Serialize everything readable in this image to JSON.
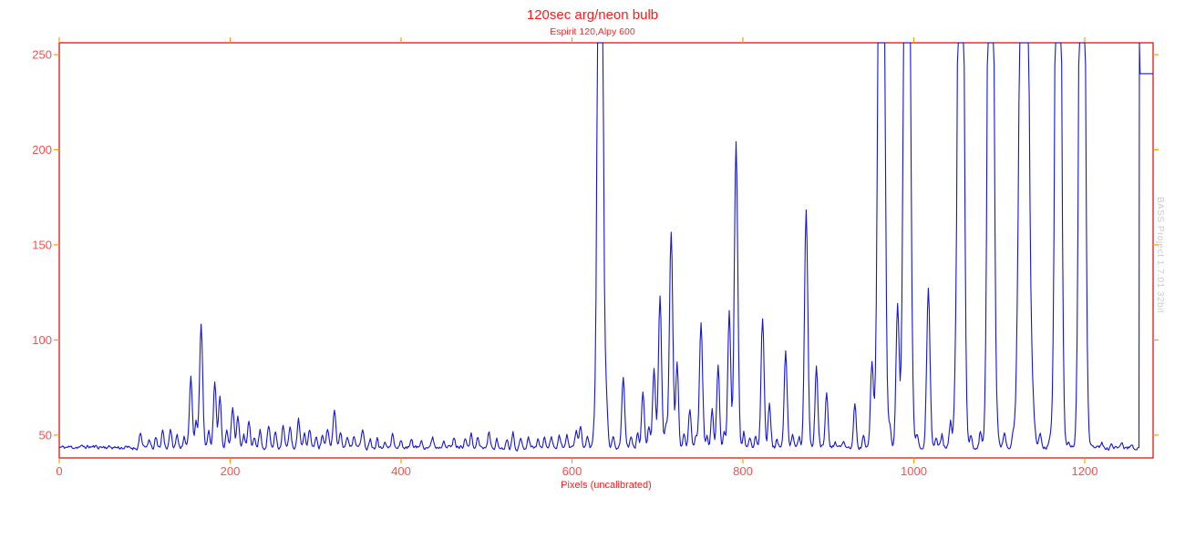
{
  "window": {
    "background": "#ffffff"
  },
  "chart_data": {
    "type": "line",
    "title": "120sec arg/neon bulb",
    "subtitle": "Espirit 120,Alpy 600",
    "xlabel": "Pixels (uncalibrated)",
    "watermark": "BASS Project 1.7.01 32bit",
    "x_ticks": [
      0,
      200,
      400,
      600,
      800,
      1000,
      1200
    ],
    "y_ticks": [
      50,
      100,
      150,
      200,
      250
    ],
    "xlim": [
      0,
      1280
    ],
    "ylim": [
      38,
      256.2
    ],
    "grid": false,
    "legend": "none",
    "baseline": 43.5,
    "noise_amplitude": 1.1,
    "clip_value": 256.2,
    "line_color": "#1414dc",
    "axis_color": "#e00000",
    "tick_color": "#ff9c00",
    "label_color": "#ff4d4d",
    "title_color": "#ff1a1a",
    "subtitle_color": "#ff2a2a",
    "xlabel_color": "#ff1a1a",
    "watermark_color": "#cbcbcb",
    "peaks": [
      [
        95,
        52,
        1.4
      ],
      [
        105,
        48,
        1.3
      ],
      [
        113,
        49,
        1.2
      ],
      [
        121,
        53,
        1.4
      ],
      [
        130,
        53,
        1.4
      ],
      [
        138,
        50,
        1.3
      ],
      [
        146,
        49,
        1.2
      ],
      [
        154,
        81,
        1.6
      ],
      [
        160,
        58,
        1.4
      ],
      [
        166,
        108,
        1.8
      ],
      [
        175,
        52,
        1.4
      ],
      [
        182,
        78,
        1.6
      ],
      [
        188,
        71,
        1.5
      ],
      [
        196,
        52,
        1.3
      ],
      [
        203,
        65,
        1.6
      ],
      [
        209,
        59,
        1.5
      ],
      [
        216,
        50,
        1.3
      ],
      [
        222,
        57,
        1.5
      ],
      [
        228,
        50,
        1.3
      ],
      [
        235,
        53,
        1.4
      ],
      [
        245,
        55,
        1.5
      ],
      [
        253,
        52,
        1.4
      ],
      [
        262,
        56,
        1.5
      ],
      [
        270,
        54,
        1.4
      ],
      [
        280,
        58,
        1.5
      ],
      [
        287,
        50,
        1.3
      ],
      [
        293,
        53,
        1.4
      ],
      [
        301,
        49,
        1.2
      ],
      [
        308,
        50,
        1.3
      ],
      [
        314,
        52,
        1.4
      ],
      [
        322,
        63,
        1.6
      ],
      [
        329,
        52,
        1.3
      ],
      [
        337,
        50,
        1.3
      ],
      [
        345,
        50,
        1.3
      ],
      [
        355,
        54,
        1.5
      ],
      [
        364,
        49,
        1.2
      ],
      [
        372,
        50,
        1.2
      ],
      [
        381,
        48,
        1.2
      ],
      [
        390,
        51,
        1.3
      ],
      [
        400,
        48,
        1.2
      ],
      [
        412,
        49,
        1.2
      ],
      [
        424,
        48,
        1.2
      ],
      [
        437,
        49,
        1.2
      ],
      [
        450,
        48,
        1.2
      ],
      [
        462,
        48,
        1.2
      ],
      [
        475,
        49,
        1.2
      ],
      [
        482,
        50,
        1.2
      ],
      [
        490,
        49,
        1.2
      ],
      [
        503,
        52,
        1.3
      ],
      [
        512,
        48,
        1.2
      ],
      [
        524,
        49,
        1.2
      ],
      [
        531,
        52,
        1.3
      ],
      [
        540,
        48,
        1.2
      ],
      [
        549,
        50,
        1.3
      ],
      [
        560,
        48,
        1.2
      ],
      [
        568,
        49,
        1.2
      ],
      [
        576,
        49,
        1.2
      ],
      [
        585,
        50,
        1.3
      ],
      [
        594,
        50,
        1.3
      ],
      [
        605,
        52,
        1.4
      ],
      [
        610,
        54,
        1.4
      ],
      [
        618,
        49,
        1.2
      ],
      [
        626,
        50,
        1.3
      ],
      [
        633,
        600,
        2.5
      ],
      [
        640,
        70,
        1.6
      ],
      [
        648,
        50,
        1.3
      ],
      [
        660,
        81,
        1.7
      ],
      [
        669,
        49,
        1.3
      ],
      [
        677,
        52,
        1.3
      ],
      [
        683,
        73,
        1.6
      ],
      [
        690,
        55,
        1.4
      ],
      [
        696,
        85,
        1.6
      ],
      [
        703,
        123,
        1.8
      ],
      [
        710,
        56,
        1.4
      ],
      [
        716,
        157,
        1.9
      ],
      [
        723,
        87,
        1.6
      ],
      [
        731,
        50,
        1.3
      ],
      [
        738,
        63,
        1.5
      ],
      [
        745,
        50,
        1.3
      ],
      [
        751,
        108,
        1.8
      ],
      [
        758,
        49,
        1.2
      ],
      [
        764,
        63,
        1.5
      ],
      [
        771,
        86,
        1.6
      ],
      [
        778,
        52,
        1.3
      ],
      [
        784,
        116,
        1.7
      ],
      [
        792,
        205,
        2.0
      ],
      [
        801,
        52,
        1.3
      ],
      [
        808,
        48,
        1.2
      ],
      [
        815,
        50,
        1.3
      ],
      [
        823,
        112,
        1.8
      ],
      [
        831,
        67,
        1.5
      ],
      [
        840,
        48,
        1.2
      ],
      [
        850,
        93,
        1.7
      ],
      [
        858,
        50,
        1.3
      ],
      [
        866,
        48,
        1.2
      ],
      [
        874,
        168,
        1.9
      ],
      [
        886,
        85,
        1.6
      ],
      [
        898,
        72,
        1.5
      ],
      [
        908,
        47,
        1.2
      ],
      [
        918,
        46,
        1.2
      ],
      [
        931,
        67,
        1.5
      ],
      [
        941,
        50,
        1.3
      ],
      [
        951,
        89,
        1.7
      ],
      [
        962,
        600,
        3.0
      ],
      [
        972,
        55,
        1.4
      ],
      [
        981,
        118,
        1.8
      ],
      [
        992,
        600,
        3.0
      ],
      [
        1004,
        50,
        1.3
      ],
      [
        1017,
        127,
        1.9
      ],
      [
        1026,
        48,
        1.2
      ],
      [
        1033,
        50,
        1.3
      ],
      [
        1043,
        57,
        1.4
      ],
      [
        1048,
        58,
        1.4
      ],
      [
        1055,
        600,
        2.8
      ],
      [
        1067,
        50,
        1.3
      ],
      [
        1078,
        53,
        1.4
      ],
      [
        1090,
        600,
        2.8
      ],
      [
        1098,
        50,
        1.3
      ],
      [
        1106,
        52,
        1.4
      ],
      [
        1116,
        50,
        1.3
      ],
      [
        1129,
        600,
        4.0
      ],
      [
        1139,
        57,
        2.5
      ],
      [
        1148,
        50,
        1.5
      ],
      [
        1160,
        48,
        1.3
      ],
      [
        1169,
        600,
        2.8
      ],
      [
        1181,
        47,
        1.2
      ],
      [
        1197,
        600,
        2.8
      ],
      [
        1208,
        46,
        1.2
      ],
      [
        1220,
        46,
        1.2
      ],
      [
        1232,
        45,
        1.2
      ],
      [
        1244,
        46,
        1.2
      ],
      [
        1254,
        45,
        1.2
      ]
    ],
    "peaks_format": [
      "x_pixel",
      "peak_value",
      "sigma_pixels"
    ],
    "saturated_peaks_x": [
      633,
      962,
      992,
      1055,
      1090,
      1129,
      1169,
      1197
    ],
    "tail": {
      "baseline_end": 1262,
      "spike_x": 1264,
      "spike_value": 256.2,
      "plateau_value": 240,
      "end_x": 1280
    }
  }
}
